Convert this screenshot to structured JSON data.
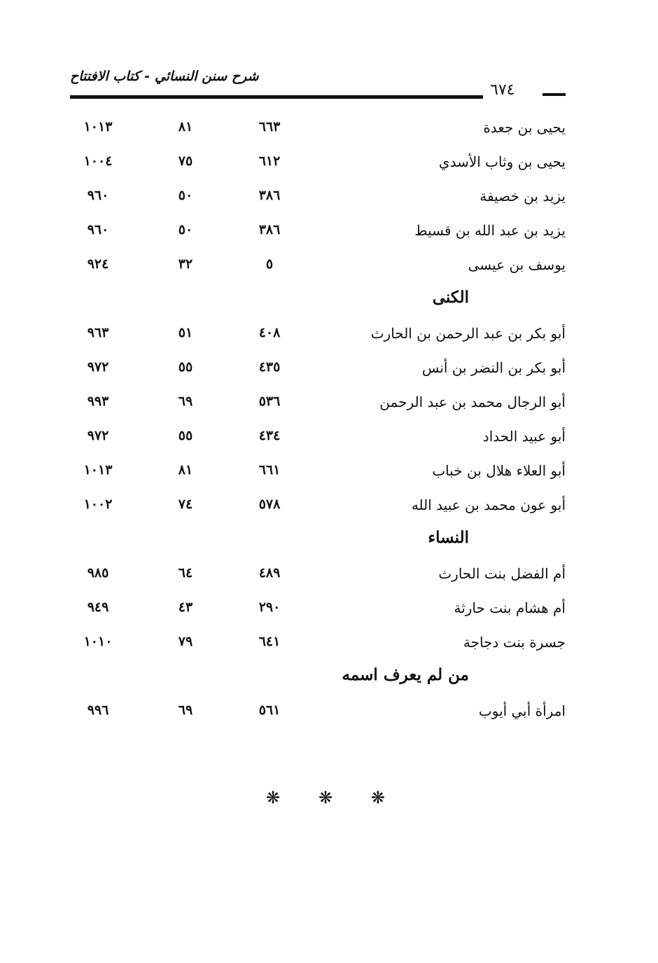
{
  "header": {
    "title": "شرح سنن النسائي - كتاب الافتتاح",
    "page_number": "٦٧٤"
  },
  "entries": [
    {
      "name": "يحيى بن جعدة",
      "cols": [
        "٦٦٣",
        "٨١",
        "١٠١٣"
      ]
    },
    {
      "name": "يحيى بن وثاب الأسدي",
      "cols": [
        "٦١٢",
        "٧٥",
        "١٠٠٤"
      ]
    },
    {
      "name": "يزيد بن خصيفة",
      "cols": [
        "٣٨٦",
        "٥٠",
        "٩٦٠"
      ]
    },
    {
      "name": "يزيد بن عبد الله بن قسيط",
      "cols": [
        "٣٨٦",
        "٥٠",
        "٩٦٠"
      ]
    },
    {
      "name": "يوسف بن عيسى",
      "cols": [
        "٥",
        "٣٢",
        "٩٢٤"
      ]
    },
    {
      "heading": "الكنى"
    },
    {
      "name": "أبو بكر بن عبد الرحمن بن الحارث",
      "cols": [
        "٤٠٨",
        "٥١",
        "٩٦٣"
      ]
    },
    {
      "name": "أبو بكر بن النضر بن أنس",
      "cols": [
        "٤٣٥",
        "٥٥",
        "٩٧٢"
      ]
    },
    {
      "name": "أبو الرجال محمد بن عبد الرحمن",
      "cols": [
        "٥٣٦",
        "٦٩",
        "٩٩٣"
      ]
    },
    {
      "name": "أبو عبيد الحداد",
      "cols": [
        "٤٣٤",
        "٥٥",
        "٩٧٢"
      ]
    },
    {
      "name": "أبو العلاء هلال بن خباب",
      "cols": [
        "٦٦١",
        "٨١",
        "١٠١٣"
      ]
    },
    {
      "name": "أبو عون محمد بن عبيد الله",
      "cols": [
        "٥٧٨",
        "٧٤",
        "١٠٠٢"
      ]
    },
    {
      "heading": "النساء"
    },
    {
      "name": "أم الفضل بنت الحارث",
      "cols": [
        "٤٨٩",
        "٦٤",
        "٩٨٥"
      ]
    },
    {
      "name": "أم هشام بنت حارثة",
      "cols": [
        "٢٩٠",
        "٤٣",
        "٩٤٩"
      ]
    },
    {
      "name": "جسرة بنت دجاجة",
      "cols": [
        "٦٤١",
        "٧٩",
        "١٠١٠"
      ]
    },
    {
      "heading": "من لم يعرف اسمه"
    },
    {
      "name": "امرأة أبي أيوب",
      "cols": [
        "٥٦١",
        "٦٩",
        "٩٩٦"
      ]
    }
  ],
  "footer": {
    "separator": [
      "❋",
      "❋",
      "❋"
    ]
  }
}
